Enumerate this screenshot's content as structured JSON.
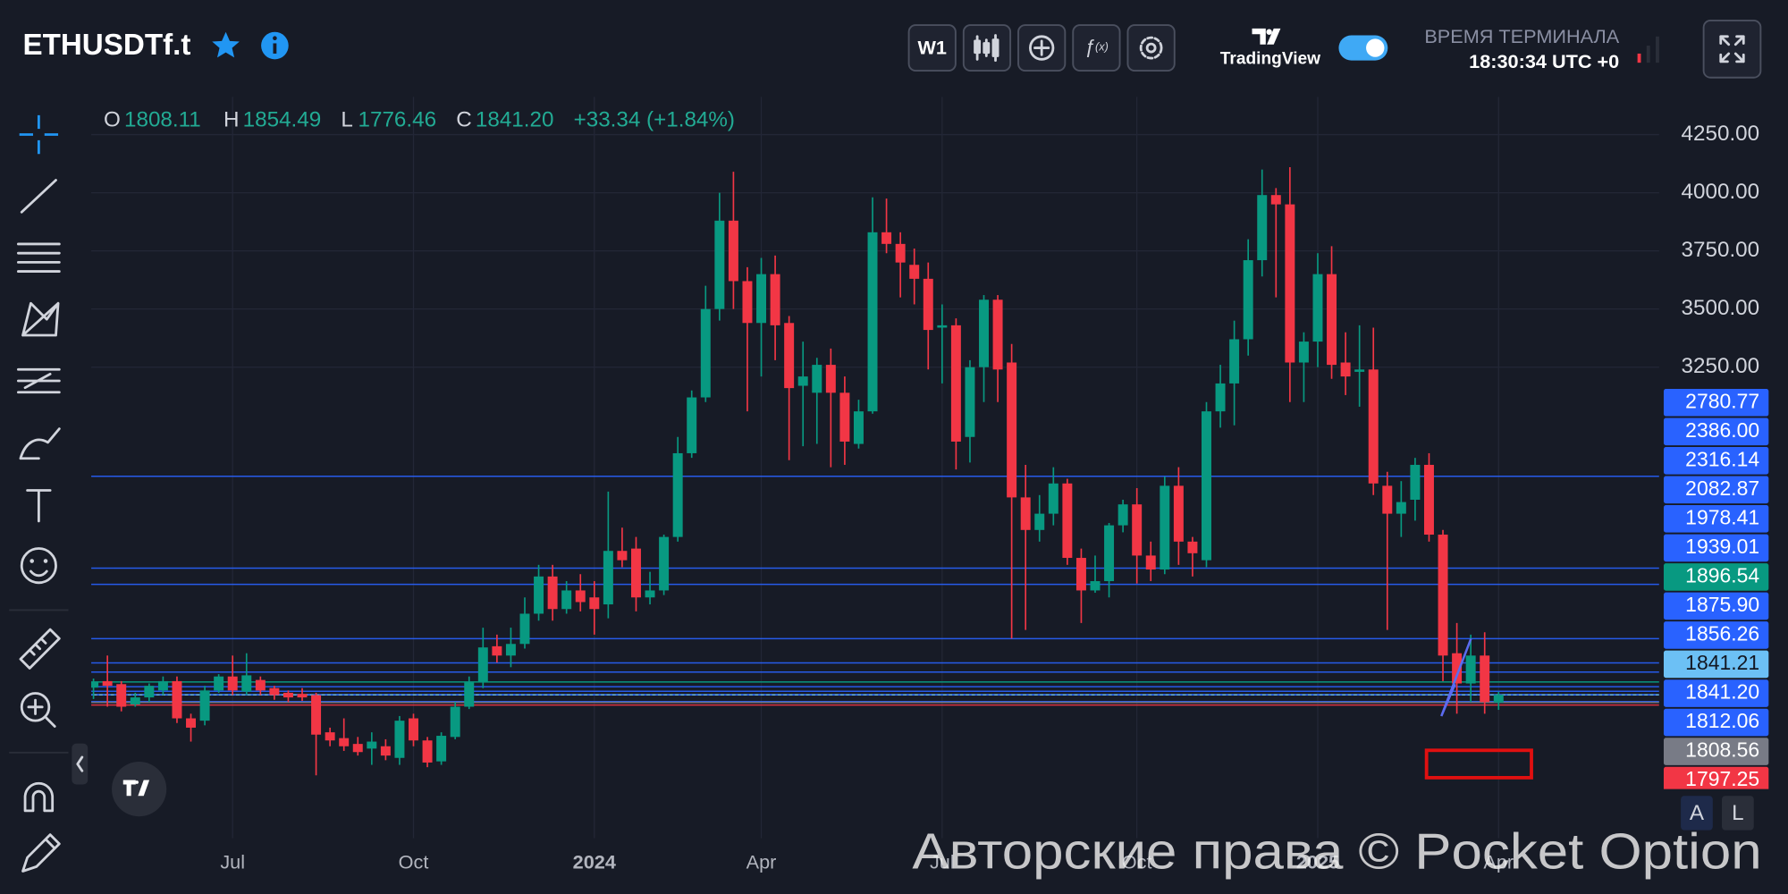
{
  "header": {
    "symbol": "ETHUSDTf.t",
    "timeframe": "W1",
    "brand": "TradingView",
    "terminal_time_label": "ВРЕМЯ ТЕРМИНАЛА",
    "terminal_time": "18:30:34 UTC +0",
    "ohlc": [
      {
        "key": "O",
        "value": "1808.11"
      },
      {
        "key": "H",
        "value": "1854.49"
      },
      {
        "key": "L",
        "value": "1776.46"
      },
      {
        "key": "C",
        "value": "1841.20"
      }
    ],
    "change": "+33.34 (+1.84%)"
  },
  "scale_buttons": [
    "A",
    "L"
  ],
  "watermark": "Авторские права © Pocket Option",
  "chart_data": {
    "type": "candlestick",
    "up_color": "#089981",
    "down_color": "#f23645",
    "grid": true,
    "categories": [
      null,
      null,
      null,
      null,
      null,
      null,
      null,
      null,
      null,
      null,
      "Jul",
      null,
      null,
      null,
      null,
      null,
      null,
      null,
      null,
      null,
      null,
      null,
      null,
      "Oct",
      null,
      null,
      null,
      null,
      null,
      null,
      null,
      null,
      null,
      null,
      null,
      null,
      "2024",
      null,
      null,
      null,
      null,
      null,
      null,
      null,
      null,
      null,
      null,
      null,
      "Apr",
      null,
      null,
      null,
      null,
      null,
      null,
      null,
      null,
      null,
      null,
      null,
      null,
      "Jul",
      null,
      null,
      null,
      null,
      null,
      null,
      null,
      null,
      null,
      null,
      null,
      null,
      null,
      "Oct",
      null,
      null,
      null,
      null,
      null,
      null,
      null,
      null,
      null,
      null,
      null,
      null,
      "2025",
      null,
      null,
      null,
      null,
      null,
      null,
      null,
      null,
      null,
      null,
      null,
      null,
      "Apr"
    ],
    "open": [
      1872,
      1900,
      1887,
      1800,
      1830,
      1860,
      1900,
      1740,
      1730,
      1860,
      1920,
      1855,
      1905,
      1870,
      1850,
      1845,
      1840,
      1680,
      1655,
      1630,
      1610,
      1620,
      1570,
      1740,
      1645,
      1555,
      1660,
      1790,
      1895,
      2050,
      2010,
      2060,
      2190,
      2350,
      2210,
      2290,
      2260,
      2230,
      2460,
      2470,
      2260,
      2290,
      2520,
      2880,
      3120,
      3500,
      3880,
      3620,
      3440,
      3650,
      3440,
      3170,
      3140,
      3260,
      3140,
      2920,
      3060,
      3830,
      3780,
      3690,
      3630,
      3420,
      3430,
      2950,
      3250,
      3540,
      3270,
      2690,
      2550,
      2620,
      2750,
      2430,
      2290,
      2330,
      2570,
      2660,
      2440,
      2380,
      2740,
      2500,
      2420,
      3060,
      3180,
      3370,
      3710,
      3990,
      3950,
      3270,
      3360,
      3650,
      3270,
      3230,
      3240,
      2740,
      2620,
      2680,
      2830,
      2530,
      2020,
      1890,
      2010,
      1808.11
    ],
    "high": [
      1911,
      2010,
      1900,
      1850,
      1890,
      1920,
      1920,
      1760,
      1880,
      1930,
      2010,
      2020,
      1920,
      1880,
      1860,
      1870,
      1850,
      1700,
      1740,
      1660,
      1680,
      1650,
      1750,
      1760,
      1660,
      1680,
      1810,
      1920,
      2130,
      2100,
      2130,
      2260,
      2400,
      2400,
      2330,
      2360,
      2330,
      2715,
      2560,
      2520,
      2370,
      2530,
      2950,
      3150,
      3600,
      4000,
      4090,
      3680,
      3720,
      3730,
      3470,
      3360,
      3290,
      3330,
      3210,
      3110,
      3980,
      3975,
      3830,
      3760,
      3700,
      3520,
      3460,
      3280,
      3560,
      3560,
      3350,
      2830,
      2700,
      2820,
      2770,
      2470,
      2440,
      2580,
      2680,
      2730,
      2500,
      2780,
      2820,
      2520,
      3100,
      3260,
      3450,
      3800,
      4100,
      4020,
      4110,
      3400,
      3740,
      3770,
      3400,
      3430,
      3420,
      2800,
      2760,
      2860,
      2880,
      2550,
      2150,
      2100,
      2110,
      1854.49
    ],
    "low": [
      1823,
      1790,
      1770,
      1790,
      1810,
      1840,
      1720,
      1640,
      1710,
      1850,
      1840,
      1840,
      1840,
      1820,
      1810,
      1815,
      1495,
      1620,
      1600,
      1580,
      1540,
      1560,
      1540,
      1620,
      1530,
      1540,
      1650,
      1780,
      1870,
      1980,
      1960,
      2040,
      2160,
      2160,
      2190,
      2200,
      2100,
      2170,
      2390,
      2200,
      2230,
      2270,
      2500,
      2860,
      3100,
      3450,
      3500,
      3060,
      3210,
      3280,
      2850,
      2910,
      2920,
      2820,
      2830,
      2900,
      3050,
      3740,
      3550,
      3520,
      3240,
      3180,
      2810,
      2840,
      3100,
      3100,
      2083,
      2120,
      2500,
      2570,
      2400,
      2150,
      2280,
      2260,
      2540,
      2320,
      2330,
      2360,
      2400,
      2350,
      2390,
      2990,
      3000,
      3300,
      3640,
      3550,
      3100,
      3100,
      3250,
      3200,
      3130,
      3080,
      2700,
      2120,
      2520,
      2590,
      2500,
      1900,
      1760,
      1810,
      1760,
      1776.46
    ],
    "close": [
      1897,
      1880,
      1790,
      1830,
      1880,
      1900,
      1740,
      1700,
      1860,
      1920,
      1860,
      1925,
      1860,
      1840,
      1830,
      1830,
      1670,
      1645,
      1620,
      1595,
      1640,
      1580,
      1730,
      1645,
      1550,
      1665,
      1790,
      1895,
      2045,
      2010,
      2060,
      2190,
      2350,
      2210,
      2290,
      2240,
      2210,
      2460,
      2420,
      2260,
      2290,
      2520,
      2880,
      3120,
      3500,
      3880,
      3620,
      3440,
      3650,
      3430,
      3160,
      3210,
      3260,
      3140,
      2930,
      3060,
      3830,
      3780,
      3700,
      3630,
      3410,
      3430,
      2930,
      3250,
      3540,
      3240,
      2690,
      2550,
      2620,
      2750,
      2430,
      2290,
      2330,
      2570,
      2660,
      2440,
      2380,
      2740,
      2500,
      2450,
      3060,
      3180,
      3370,
      3710,
      3990,
      3950,
      3270,
      3360,
      3650,
      3260,
      3210,
      3240,
      2750,
      2620,
      2670,
      2830,
      2530,
      2010,
      1890,
      2010,
      1810,
      1841.2
    ],
    "ylim": [
      1225,
      4412
    ],
    "yticks": [
      {
        "value": 3250,
        "label": "3250.00"
      },
      {
        "value": 3500,
        "label": "3500.00"
      },
      {
        "value": 3750,
        "label": "3750.00"
      },
      {
        "value": 4000,
        "label": "4000.00"
      },
      {
        "value": 4250,
        "label": "4250.00"
      }
    ],
    "price_lines": [
      {
        "value": 2780.77,
        "color": "#2962ff"
      },
      {
        "value": 2386,
        "label": "2386.00",
        "color": "#2962ff"
      },
      {
        "value": 2316.14,
        "color": "#2962ff"
      },
      {
        "value": 2082.87,
        "color": "#2962ff"
      },
      {
        "value": 1978.41,
        "color": "#2962ff"
      },
      {
        "value": 1939.01,
        "color": "#2962ff"
      },
      {
        "value": 1896.54,
        "color": "#089981"
      },
      {
        "value": 1875.9,
        "label": "1875.90",
        "color": "#2962ff"
      },
      {
        "value": 1856.26,
        "color": "#2962ff"
      },
      {
        "value": 1841.21,
        "color": "#6cc0f5",
        "text_color": "#131722"
      },
      {
        "value": 1841.2,
        "label": "1841.20",
        "color": "#2962ff",
        "line_style": "dotted"
      },
      {
        "value": 1812.06,
        "color": "#2962ff"
      },
      {
        "value": 1808.56,
        "color": "#787b86"
      },
      {
        "value": 1797.25,
        "color": "#f23645"
      }
    ]
  }
}
